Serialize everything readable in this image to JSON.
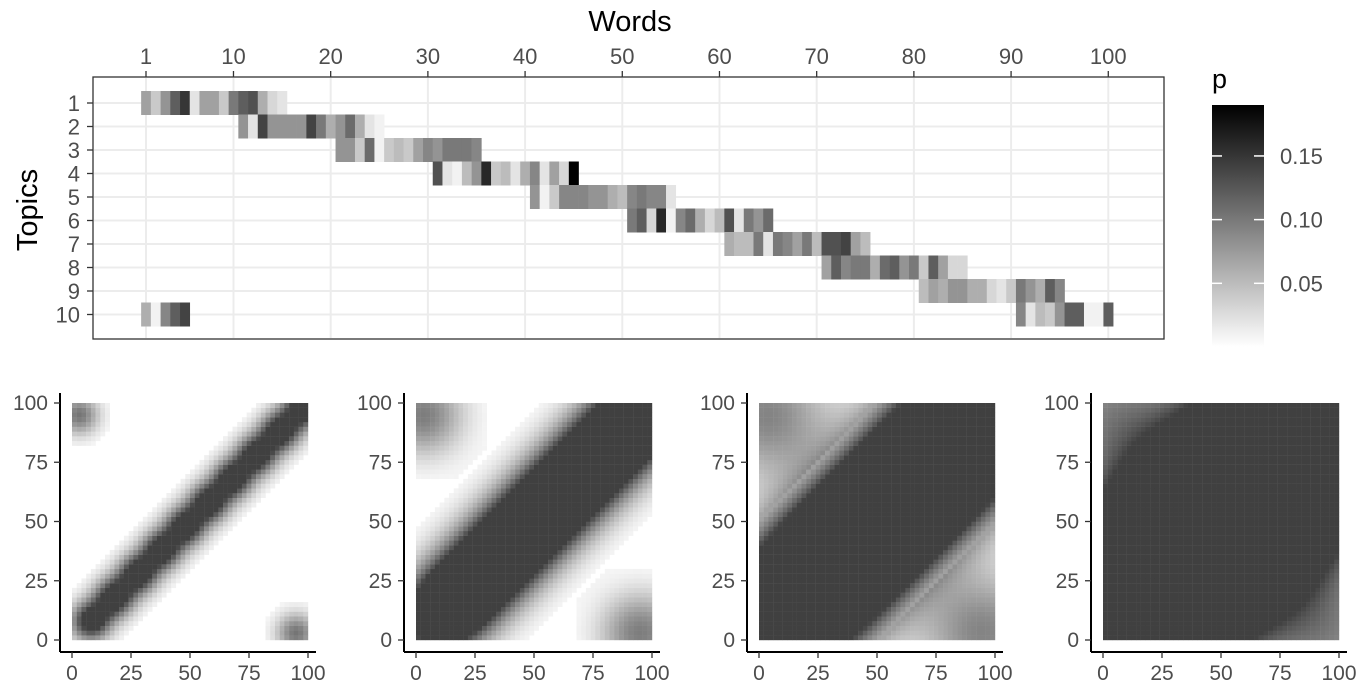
{
  "chart_data": [
    {
      "type": "heatmap",
      "title": "",
      "xlabel": "Words",
      "ylabel": "Topics",
      "x_ticks": [
        "1",
        "10",
        "20",
        "30",
        "40",
        "50",
        "60",
        "70",
        "80",
        "90",
        "100"
      ],
      "y_ticks": [
        "1",
        "2",
        "3",
        "4",
        "5",
        "6",
        "7",
        "8",
        "9",
        "10"
      ],
      "xlim": [
        1,
        100
      ],
      "x_axis_position": "top",
      "grid": true,
      "legend": {
        "title": "p",
        "ticks": [
          "0.05",
          "0.10",
          "0.15"
        ],
        "range": [
          0,
          0.19
        ],
        "placement": "right"
      },
      "topics": [
        {
          "topic": 1,
          "words": [
            1,
            15
          ],
          "p": [
            0.07,
            0.04,
            0.08,
            0.12,
            0.15,
            0.02,
            0.07,
            0.07,
            0.04,
            0.1,
            0.12,
            0.13,
            0.06,
            0.03,
            0.02
          ]
        },
        {
          "topic": 2,
          "words": [
            11,
            25
          ],
          "p": [
            0.08,
            0.02,
            0.14,
            0.08,
            0.08,
            0.08,
            0.08,
            0.14,
            0.1,
            0.06,
            0.08,
            0.11,
            0.06,
            0.02,
            0.01
          ]
        },
        {
          "topic": 3,
          "words": [
            21,
            35
          ],
          "p": [
            0.08,
            0.08,
            0.04,
            0.11,
            0.01,
            0.04,
            0.05,
            0.04,
            0.07,
            0.09,
            0.08,
            0.1,
            0.1,
            0.1,
            0.09
          ]
        },
        {
          "topic": 4,
          "words": [
            31,
            45
          ],
          "p": [
            0.13,
            0.02,
            0.01,
            0.05,
            0.08,
            0.16,
            0.04,
            0.05,
            0.02,
            0.06,
            0.09,
            0.02,
            0.07,
            0.03,
            0.19
          ]
        },
        {
          "topic": 5,
          "words": [
            41,
            55
          ],
          "p": [
            0.08,
            0.01,
            0.04,
            0.09,
            0.09,
            0.09,
            0.08,
            0.08,
            0.06,
            0.05,
            0.09,
            0.1,
            0.09,
            0.09,
            0.02
          ]
        },
        {
          "topic": 6,
          "words": [
            51,
            65
          ],
          "p": [
            0.1,
            0.12,
            0.03,
            0.16,
            0.01,
            0.09,
            0.11,
            0.06,
            0.03,
            0.05,
            0.13,
            0.02,
            0.1,
            0.08,
            0.11
          ]
        },
        {
          "topic": 7,
          "words": [
            61,
            75
          ],
          "p": [
            0.06,
            0.05,
            0.05,
            0.1,
            0.02,
            0.1,
            0.09,
            0.07,
            0.1,
            0.05,
            0.13,
            0.13,
            0.14,
            0.07,
            0.05
          ]
        },
        {
          "topic": 8,
          "words": [
            71,
            85
          ],
          "p": [
            0.07,
            0.12,
            0.09,
            0.1,
            0.1,
            0.06,
            0.11,
            0.12,
            0.08,
            0.1,
            0.04,
            0.12,
            0.07,
            0.03,
            0.03
          ]
        },
        {
          "topic": 9,
          "words": [
            81,
            95
          ],
          "p": [
            0.05,
            0.07,
            0.06,
            0.08,
            0.08,
            0.06,
            0.06,
            0.03,
            0.02,
            0.04,
            0.1,
            0.08,
            0.06,
            0.12,
            0.09
          ]
        },
        {
          "topic": 10,
          "words": [
            [
              1,
              5
            ],
            [
              91,
              100
            ]
          ],
          "p_a": [
            0.06,
            0.01,
            0.09,
            0.12,
            0.14
          ],
          "p_b": [
            0.09,
            0.02,
            0.05,
            0.04,
            0.08,
            0.12,
            0.12,
            0.01,
            0.01,
            0.12
          ]
        }
      ]
    },
    {
      "type": "heatmap",
      "x_ticks": [
        "0",
        "25",
        "50",
        "75",
        "100"
      ],
      "y_ticks": [
        "0",
        "25",
        "50",
        "75",
        "100"
      ],
      "xlim": [
        0,
        100
      ],
      "ylim": [
        0,
        100
      ],
      "block_width": 10,
      "spread": 0
    },
    {
      "type": "heatmap",
      "x_ticks": [
        "0",
        "25",
        "50",
        "75",
        "100"
      ],
      "y_ticks": [
        "0",
        "25",
        "50",
        "75",
        "100"
      ],
      "xlim": [
        0,
        100
      ],
      "ylim": [
        0,
        100
      ],
      "block_width": 10,
      "spread": 1
    },
    {
      "type": "heatmap",
      "x_ticks": [
        "0",
        "25",
        "50",
        "75",
        "100"
      ],
      "y_ticks": [
        "0",
        "25",
        "50",
        "75",
        "100"
      ],
      "xlim": [
        0,
        100
      ],
      "ylim": [
        0,
        100
      ],
      "block_width": 10,
      "spread": 2
    },
    {
      "type": "heatmap",
      "x_ticks": [
        "0",
        "25",
        "50",
        "75",
        "100"
      ],
      "y_ticks": [
        "0",
        "25",
        "50",
        "75",
        "100"
      ],
      "xlim": [
        0,
        100
      ],
      "ylim": [
        0,
        100
      ],
      "block_width": 10,
      "spread": 3
    }
  ]
}
